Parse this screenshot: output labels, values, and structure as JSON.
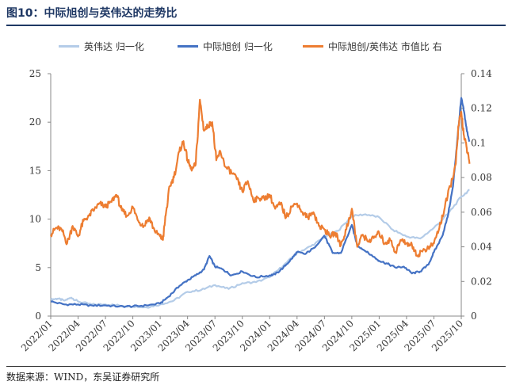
{
  "header": {
    "title": "图10：中际旭创与英伟达的走势比"
  },
  "footer": {
    "source": "数据来源：WIND，东吴证券研究所"
  },
  "colors": {
    "nvda": "#b4cce8",
    "zjxc": "#4472c4",
    "ratio": "#ed7d31",
    "title": "#1f3864"
  },
  "chart_data": {
    "type": "line",
    "title": "中际旭创与英伟达的走势比",
    "xlabel": "",
    "ylabel": "",
    "categories": [
      "2022/01",
      "2022/04",
      "2022/07",
      "2022/10",
      "2023/01",
      "2023/04",
      "2023/07",
      "2023/10",
      "2024/01",
      "2024/04",
      "2024/07",
      "2024/10",
      "2025/01",
      "2025/04",
      "2025/07",
      "2025/10"
    ],
    "ylim_left": [
      0,
      25
    ],
    "yticks_left": [
      "0",
      "5",
      "10",
      "15",
      "20",
      "25"
    ],
    "ylim_right": [
      0,
      0.14
    ],
    "yticks_right": [
      "0",
      "0.02",
      "0.04",
      "0.06",
      "0.08",
      "0.1",
      "0.12",
      "0.14"
    ],
    "legend_position": "top",
    "series": [
      {
        "name": "英伟达 归一化",
        "axis": "left",
        "color_key": "nvda",
        "x": [
          0,
          0.25,
          0.5,
          0.75,
          1,
          1.5,
          2,
          2.5,
          3,
          3.5,
          4,
          4.5,
          5,
          5.5,
          6,
          6.5,
          7,
          7.5,
          8,
          8.5,
          9,
          9.5,
          10,
          10.5,
          11,
          11.5,
          12,
          12.5,
          13,
          13.5,
          14,
          14.5,
          15,
          15.3
        ],
        "values": [
          1.7,
          1.8,
          1.6,
          1.9,
          1.5,
          1.2,
          1.2,
          1.1,
          1.0,
          0.9,
          1.2,
          1.6,
          2.5,
          2.7,
          3.2,
          2.8,
          3.4,
          3.5,
          4.0,
          5.2,
          6.5,
          7.2,
          8.1,
          8.8,
          10.3,
          10.5,
          10.2,
          8.9,
          8.2,
          8.0,
          9.1,
          10.5,
          12.3,
          13.0
        ]
      },
      {
        "name": "中际旭创 归一化",
        "axis": "left",
        "color_key": "zjxc",
        "x": [
          0,
          0.5,
          1,
          1.5,
          2,
          2.5,
          3,
          3.5,
          4,
          4.3,
          4.7,
          5,
          5.3,
          5.6,
          5.8,
          6,
          6.3,
          6.6,
          7,
          7.5,
          8,
          8.2,
          8.5,
          8.8,
          9,
          9.3,
          9.6,
          10,
          10.3,
          10.6,
          11,
          11.2,
          11.5,
          11.8,
          12,
          12.3,
          12.6,
          12.9,
          13.2,
          13.5,
          13.8,
          14,
          14.3,
          14.5,
          14.7,
          14.85,
          15,
          15.1,
          15.2,
          15.3
        ],
        "values": [
          1.5,
          1.2,
          1.2,
          1.1,
          1.1,
          1.0,
          1.0,
          1.1,
          1.3,
          2.0,
          3.1,
          3.7,
          4.2,
          4.8,
          6.2,
          5.1,
          4.8,
          4.2,
          4.6,
          4.0,
          4.2,
          4.3,
          5.0,
          5.9,
          6.6,
          6.4,
          7.0,
          8.3,
          6.5,
          6.5,
          9.4,
          7.3,
          6.7,
          6.1,
          5.7,
          5.4,
          5.0,
          5.1,
          4.4,
          4.6,
          5.3,
          6.6,
          8.2,
          10.2,
          13.4,
          18.0,
          22.5,
          21.1,
          19.2,
          18.0
        ]
      },
      {
        "name": "中际旭创/英伟达 市值比 右",
        "axis": "right",
        "color_key": "ratio",
        "x": [
          0,
          0.2,
          0.4,
          0.6,
          0.8,
          1,
          1.2,
          1.4,
          1.6,
          1.8,
          2,
          2.2,
          2.4,
          2.6,
          2.8,
          3,
          3.2,
          3.4,
          3.6,
          3.8,
          4,
          4.1,
          4.2,
          4.35,
          4.5,
          4.7,
          4.85,
          5,
          5.15,
          5.3,
          5.45,
          5.6,
          5.75,
          5.9,
          6.05,
          6.2,
          6.4,
          6.6,
          6.8,
          7,
          7.2,
          7.4,
          7.6,
          7.8,
          8,
          8.2,
          8.4,
          8.6,
          8.8,
          9,
          9.2,
          9.4,
          9.6,
          9.8,
          10,
          10.2,
          10.4,
          10.6,
          10.8,
          11,
          11.2,
          11.4,
          11.6,
          11.8,
          12,
          12.2,
          12.4,
          12.6,
          12.8,
          13,
          13.2,
          13.4,
          13.6,
          13.8,
          14,
          14.2,
          14.4,
          14.6,
          14.8,
          14.9,
          15,
          15.1,
          15.2,
          15.3
        ],
        "values": [
          0.047,
          0.051,
          0.05,
          0.042,
          0.052,
          0.046,
          0.055,
          0.058,
          0.062,
          0.065,
          0.063,
          0.066,
          0.07,
          0.061,
          0.058,
          0.063,
          0.055,
          0.052,
          0.057,
          0.049,
          0.046,
          0.044,
          0.058,
          0.075,
          0.08,
          0.095,
          0.101,
          0.09,
          0.084,
          0.088,
          0.125,
          0.107,
          0.11,
          0.112,
          0.09,
          0.095,
          0.086,
          0.083,
          0.079,
          0.072,
          0.078,
          0.067,
          0.068,
          0.068,
          0.07,
          0.062,
          0.065,
          0.057,
          0.063,
          0.065,
          0.06,
          0.057,
          0.06,
          0.052,
          0.05,
          0.046,
          0.048,
          0.041,
          0.05,
          0.062,
          0.04,
          0.047,
          0.043,
          0.045,
          0.048,
          0.042,
          0.044,
          0.037,
          0.044,
          0.042,
          0.041,
          0.035,
          0.038,
          0.039,
          0.042,
          0.051,
          0.063,
          0.075,
          0.088,
          0.11,
          0.118,
          0.104,
          0.097,
          0.088
        ]
      }
    ]
  }
}
